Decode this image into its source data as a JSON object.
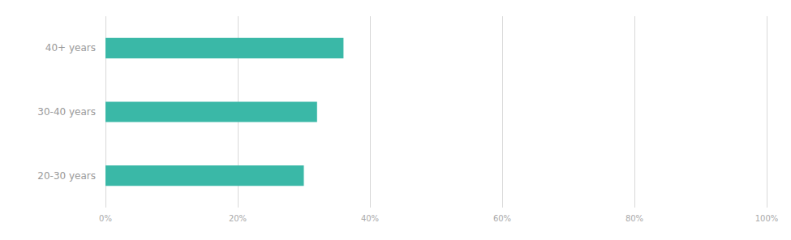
{
  "chart_data": {
    "type": "bar",
    "orientation": "horizontal",
    "categories": [
      "20-30 years",
      "30-40 years",
      "40+ years"
    ],
    "values": [
      30,
      32,
      36
    ],
    "color": "#3ab8a7",
    "xlim": [
      0,
      100
    ],
    "xticks": [
      {
        "value": 0,
        "label": "0%"
      },
      {
        "value": 20,
        "label": "20%"
      },
      {
        "value": 40,
        "label": "40%"
      },
      {
        "value": 60,
        "label": "60%"
      },
      {
        "value": 80,
        "label": "80%"
      },
      {
        "value": 100,
        "label": "100%"
      }
    ],
    "grid": true
  }
}
